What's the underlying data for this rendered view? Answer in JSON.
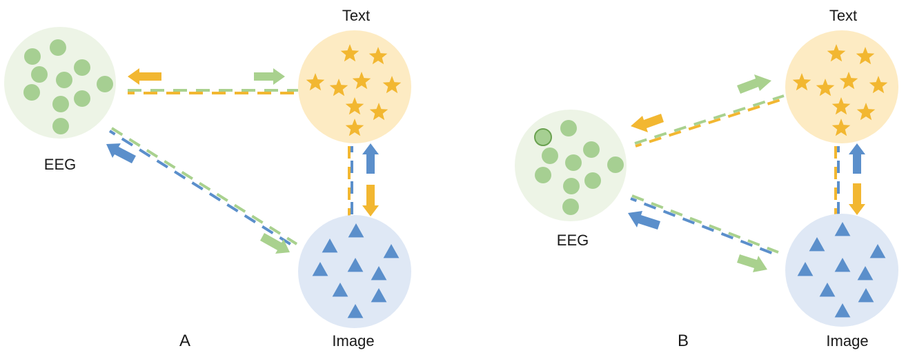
{
  "colors": {
    "eeg_fill": "#edf4e6",
    "eeg_dot": "#a6cf92",
    "text_fill": "#fdebc3",
    "text_star": "#f2b731",
    "image_fill": "#dfe8f5",
    "image_tri": "#5b8fcb",
    "arrow_green": "#a9d18e",
    "arrow_yellow": "#f2b731",
    "arrow_blue": "#5b8fcb"
  },
  "panels": [
    {
      "id": "A",
      "label": "A",
      "nodes": {
        "eeg": {
          "label": "EEG",
          "marker": "circle-dot"
        },
        "text": {
          "label": "Text",
          "marker": "star"
        },
        "image": {
          "label": "Image",
          "marker": "triangle"
        }
      }
    },
    {
      "id": "B",
      "label": "B",
      "nodes": {
        "eeg": {
          "label": "EEG",
          "marker": "circle-dot"
        },
        "text": {
          "label": "Text",
          "marker": "star"
        },
        "image": {
          "label": "Image",
          "marker": "triangle"
        }
      }
    }
  ]
}
